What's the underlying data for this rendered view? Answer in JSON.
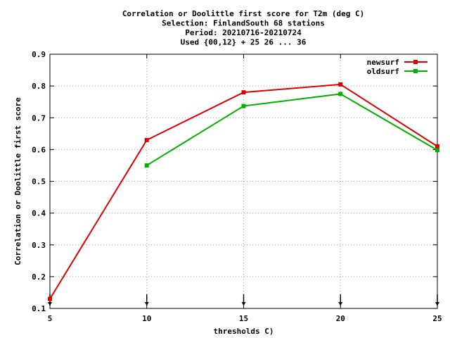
{
  "chart_data": {
    "type": "line",
    "title_lines": [
      "Correlation or Doolittle first score  for T2m (deg C)",
      "Selection: FinlandSouth     68 stations",
      "Period: 20210716-20210724",
      "Used {00,12} + 25 26 ... 36"
    ],
    "xlabel": "thresholds C)",
    "ylabel": "Correlation or Doolittle first score",
    "xlim": [
      5,
      25
    ],
    "ylim": [
      0.1,
      0.9
    ],
    "xticks": [
      5,
      10,
      15,
      20,
      25
    ],
    "yticks": [
      0.1,
      0.2,
      0.3,
      0.4,
      0.5,
      0.6,
      0.7,
      0.8,
      0.9
    ],
    "xtick_labels": [
      "5",
      "10",
      "15",
      "20",
      "25"
    ],
    "ytick_labels": [
      "0.1",
      "0.2",
      "0.3",
      "0.4",
      "0.5",
      "0.6",
      "0.7",
      "0.8",
      "0.9"
    ],
    "grid": true,
    "legend_position": "top-right",
    "series": [
      {
        "name": "newsurf",
        "color": "#e00000",
        "x": [
          5,
          10,
          15,
          20,
          25
        ],
        "y": [
          0.13,
          0.63,
          0.78,
          0.805,
          0.61
        ]
      },
      {
        "name": "oldsurf",
        "color": "#00b000",
        "x": [
          10,
          15,
          20,
          25
        ],
        "y": [
          0.55,
          0.737,
          0.775,
          0.598
        ]
      }
    ],
    "markers_x": [
      5,
      10,
      15,
      20,
      25
    ]
  }
}
